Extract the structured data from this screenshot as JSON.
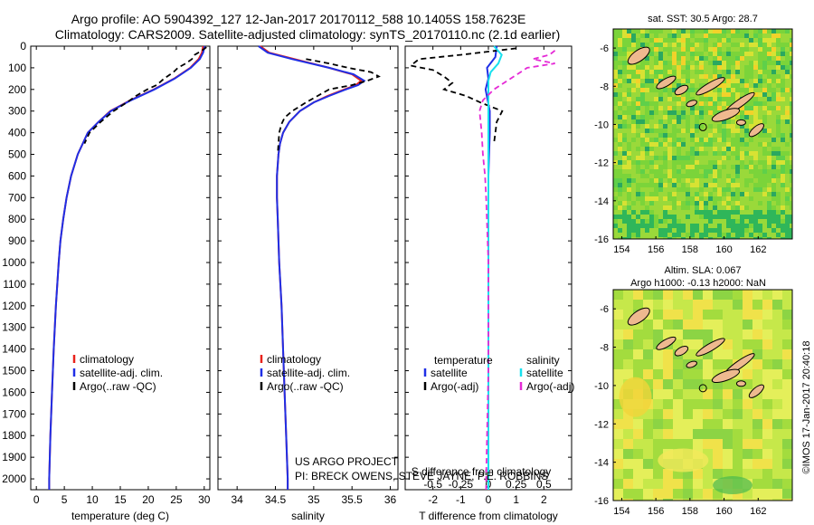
{
  "header": {
    "line1": "Argo profile: AO 5904392_127 12-Jan-2017 20170112_588 10.1405S 158.7623E",
    "line2": "Climatology: CARS2009. Satellite-adjusted climatology: synTS_20170110.nc (2.1d earlier)"
  },
  "credits": {
    "project": "US ARGO PROJECT",
    "pi": "PI: BRECK OWENS, STEVE JAYNE, P.E. ROBBINS",
    "stamp": "©IMOS 17-Jan-2017 20:40:18"
  },
  "colors": {
    "climatology": "#e8221b",
    "satellite": "#1f2fe6",
    "argo": "#000000",
    "sat_temp": "#1f2fe6",
    "sat_sal": "#18e0ee",
    "argo_sal": "#e52ad6"
  },
  "chart_data": [
    {
      "type": "line",
      "xlabel": "temperature (deg C)",
      "ylabel": "",
      "xlim": [
        -1,
        31
      ],
      "ylim": [
        2050,
        0
      ],
      "xticks": [
        "0",
        "5",
        "10",
        "15",
        "20",
        "25",
        "30"
      ],
      "yticks": [
        "0",
        "100",
        "200",
        "300",
        "400",
        "500",
        "600",
        "700",
        "800",
        "900",
        "1000",
        "1100",
        "1200",
        "1300",
        "1400",
        "1500",
        "1600",
        "1700",
        "1800",
        "1900",
        "2000"
      ],
      "legend": [
        "climatology",
        "satellite-adj. clim.",
        "Argo(..raw -QC)"
      ],
      "legend_placement": "lower-center",
      "series": [
        {
          "name": "climatology",
          "depth": [
            0,
            30,
            60,
            100,
            150,
            200,
            250,
            300,
            350,
            400,
            500,
            600,
            700,
            800,
            900,
            1000,
            1200,
            1400,
            1600,
            1800,
            2000,
            2050
          ],
          "values": [
            29.8,
            29.6,
            29.0,
            27.5,
            24.6,
            21.0,
            16.8,
            13.2,
            11.1,
            9.2,
            7.4,
            6.2,
            5.4,
            4.8,
            4.3,
            4.0,
            3.5,
            3.1,
            2.8,
            2.5,
            2.3,
            2.3
          ]
        },
        {
          "name": "satellite-adj. clim.",
          "depth": [
            0,
            30,
            60,
            100,
            150,
            200,
            250,
            300,
            350,
            400,
            500,
            600,
            700,
            800,
            900,
            1000,
            1200,
            1400,
            1600,
            1800,
            2000,
            2050
          ],
          "values": [
            30.1,
            29.8,
            29.2,
            27.6,
            24.7,
            21.1,
            16.9,
            13.3,
            11.1,
            9.2,
            7.4,
            6.2,
            5.4,
            4.8,
            4.3,
            4.0,
            3.5,
            3.1,
            2.8,
            2.5,
            2.3,
            2.3
          ]
        },
        {
          "name": "Argo(..raw -QC)",
          "depth": [
            5,
            20,
            40,
            60,
            80,
            100,
            120,
            150,
            180,
            200,
            230,
            260,
            300,
            350,
            400,
            450
          ],
          "values": [
            30.4,
            29.6,
            28.3,
            27.8,
            26.7,
            25.3,
            24.5,
            22.8,
            21.5,
            19.8,
            17.8,
            16.2,
            13.8,
            11.5,
            9.5,
            8.6
          ]
        }
      ]
    },
    {
      "type": "line",
      "xlabel": "salinity",
      "xlim": [
        33.75,
        36.1
      ],
      "ylim": [
        2050,
        0
      ],
      "xticks": [
        "34",
        "34.5",
        "35",
        "35.5",
        "36"
      ],
      "legend": [
        "climatology",
        "satellite-adj. clim.",
        "Argo(..raw -QC)"
      ],
      "legend_placement": "lower-center",
      "series": [
        {
          "name": "climatology",
          "depth": [
            0,
            30,
            60,
            100,
            130,
            160,
            180,
            200,
            230,
            260,
            300,
            350,
            400,
            450,
            500,
            600,
            700,
            800,
            1000,
            1200,
            1500,
            1800,
            2000,
            2050
          ],
          "values": [
            34.3,
            34.42,
            34.75,
            35.2,
            35.5,
            35.62,
            35.55,
            35.4,
            35.18,
            35.0,
            34.82,
            34.68,
            34.6,
            34.56,
            34.54,
            34.52,
            34.52,
            34.53,
            34.55,
            34.58,
            34.61,
            34.64,
            34.66,
            34.66
          ]
        },
        {
          "name": "satellite-adj. clim.",
          "depth": [
            0,
            30,
            60,
            100,
            130,
            160,
            180,
            200,
            230,
            260,
            300,
            350,
            400,
            450,
            500,
            600,
            700,
            800,
            1000,
            1200,
            1500,
            1800,
            2000,
            2050
          ],
          "values": [
            34.28,
            34.4,
            34.72,
            35.2,
            35.52,
            35.66,
            35.58,
            35.42,
            35.2,
            35.0,
            34.82,
            34.68,
            34.6,
            34.56,
            34.54,
            34.52,
            34.52,
            34.53,
            34.55,
            34.58,
            34.61,
            34.64,
            34.66,
            34.66
          ]
        },
        {
          "name": "Argo(..raw -QC)",
          "depth": [
            60,
            80,
            100,
            120,
            140,
            160,
            180,
            200,
            230,
            260,
            300,
            330,
            360,
            400,
            450,
            500
          ],
          "values": [
            34.9,
            35.2,
            35.45,
            35.75,
            35.85,
            35.7,
            35.5,
            35.2,
            35.05,
            34.9,
            34.72,
            34.62,
            34.58,
            34.55,
            34.54,
            34.53
          ]
        }
      ]
    },
    {
      "type": "line",
      "xlabel": "T difference from climatology",
      "xlabel_top": "S difference from climatology",
      "xlim": [
        -3,
        3
      ],
      "ylim": [
        2050,
        0
      ],
      "xticks": [
        "-2",
        "-1",
        "0",
        "1",
        "2"
      ],
      "xticks_top": [
        "-0.5",
        "-0.25",
        "0",
        "0.25",
        "0.5"
      ],
      "legend_titles": [
        "temperature",
        "salinity"
      ],
      "legend": [
        "satellite",
        "Argo(-adj)",
        "satellite",
        "Argo(-adj)"
      ],
      "legend_placement": "lower-center",
      "series": [
        {
          "name": "satellite",
          "group": "temperature",
          "depth": [
            0,
            50,
            100,
            150,
            200,
            300,
            400,
            600,
            800,
            1000,
            1500,
            2000,
            2050
          ],
          "values": [
            0.3,
            0.25,
            -0.05,
            0.0,
            -0.1,
            0.05,
            0.05,
            0.0,
            0.0,
            0.0,
            0.0,
            0.0,
            0.0
          ]
        },
        {
          "name": "Argo(-adj)",
          "group": "temperature",
          "depth": [
            10,
            40,
            60,
            90,
            110,
            140,
            170,
            200,
            230,
            260,
            300,
            350,
            400,
            450
          ],
          "values": [
            1.0,
            -1.0,
            -2.5,
            -2.8,
            -2.0,
            -1.6,
            -1.3,
            -1.6,
            -0.8,
            -0.3,
            0.5,
            0.3,
            0.25,
            0.2
          ]
        },
        {
          "name": "satellite",
          "group": "salinity",
          "depth": [
            0,
            40,
            80,
            120,
            160,
            200,
            300,
            400,
            600,
            800,
            1000,
            1500,
            2000,
            2050
          ],
          "values": [
            0.05,
            0.12,
            0.09,
            0.02,
            0.0,
            0.0,
            0.0,
            0.0,
            0.0,
            0.0,
            0.0,
            0.0,
            0.0,
            0.0
          ]
        },
        {
          "name": "Argo(-adj)",
          "group": "salinity",
          "depth": [
            20,
            40,
            60,
            80,
            100,
            150,
            200,
            250,
            300,
            400,
            500,
            600,
            700,
            1000,
            1500,
            2000,
            2050
          ],
          "values": [
            0.6,
            0.55,
            0.4,
            0.6,
            0.35,
            0.2,
            0.05,
            -0.05,
            -0.08,
            -0.06,
            -0.05,
            -0.03,
            -0.02,
            0.0,
            0.0,
            -0.02,
            -0.02
          ]
        }
      ]
    },
    {
      "type": "heatmap",
      "title": "sat. SST: 30.5 Argo: 28.7",
      "xlim": [
        153.5,
        164
      ],
      "ylim": [
        -16,
        -5
      ],
      "xticks": [
        "154",
        "156",
        "158",
        "160",
        "162"
      ],
      "yticks": [
        "-6",
        "-8",
        "-10",
        "-12",
        "-14",
        "-16"
      ]
    },
    {
      "type": "heatmap",
      "title": "Altim. SLA: 0.067",
      "subtitle": "Argo h1000: -0.13 h2000: NaN",
      "xlim": [
        153.5,
        164
      ],
      "ylim": [
        -16,
        -5
      ],
      "xticks": [
        "154",
        "156",
        "158",
        "160",
        "162"
      ],
      "yticks": [
        "-6",
        "-8",
        "-10",
        "-12",
        "-14",
        "-16"
      ]
    }
  ]
}
